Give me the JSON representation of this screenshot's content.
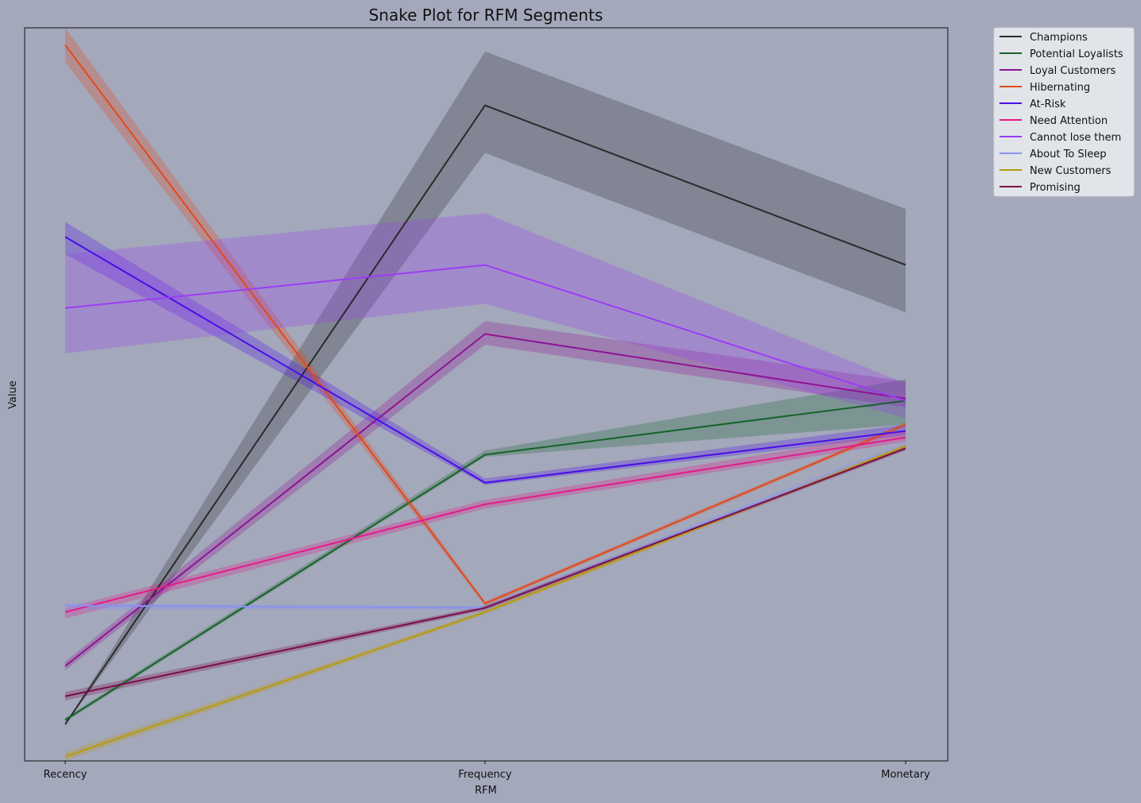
{
  "chart_data": {
    "type": "line",
    "title": "Snake Plot for RFM Segments",
    "xlabel": "RFM",
    "ylabel": "Value",
    "categories": [
      "Recency",
      "Frequency",
      "Monetary"
    ],
    "ylim": [
      -1.1,
      2.3
    ],
    "y_ticks_shown": false,
    "grid": false,
    "legend_position": "outside-top-right",
    "series": [
      {
        "name": "Champions",
        "color": "#2b2b2b",
        "values": [
          -0.93,
          1.94,
          1.2
        ],
        "ci": [
          [
            -0.93,
            -0.93
          ],
          [
            1.72,
            2.19
          ],
          [
            0.98,
            1.46
          ]
        ]
      },
      {
        "name": "Potential Loyalists",
        "color": "#17632a",
        "values": [
          -0.91,
          0.32,
          0.57
        ],
        "ci": [
          [
            -0.92,
            -0.9
          ],
          [
            0.31,
            0.34
          ],
          [
            0.46,
            0.67
          ]
        ]
      },
      {
        "name": "Loyal Customers",
        "color": "#8e1393",
        "values": [
          -0.66,
          0.88,
          0.58
        ],
        "ci": [
          [
            -0.68,
            -0.64
          ],
          [
            0.83,
            0.94
          ],
          [
            0.54,
            0.66
          ]
        ]
      },
      {
        "name": "Hibernating",
        "color": "#e2491c",
        "values": [
          2.22,
          -0.37,
          0.46
        ],
        "ci": [
          [
            2.14,
            2.3
          ],
          [
            -0.38,
            -0.36
          ],
          [
            0.45,
            0.47
          ]
        ]
      },
      {
        "name": "At-Risk",
        "color": "#4a0de8",
        "values": [
          1.33,
          0.19,
          0.43
        ],
        "ci": [
          [
            1.25,
            1.4
          ],
          [
            0.18,
            0.21
          ],
          [
            0.41,
            0.46
          ]
        ]
      },
      {
        "name": "Need Attention",
        "color": "#e31a8a",
        "values": [
          -0.41,
          0.09,
          0.4
        ],
        "ci": [
          [
            -0.44,
            -0.39
          ],
          [
            0.07,
            0.11
          ],
          [
            0.38,
            0.43
          ]
        ]
      },
      {
        "name": "Cannot lose them",
        "color": "#9b3df2",
        "values": [
          1.0,
          1.2,
          0.57
        ],
        "ci": [
          [
            0.79,
            1.25
          ],
          [
            1.02,
            1.44
          ],
          [
            0.49,
            0.65
          ]
        ]
      },
      {
        "name": "About To Sleep",
        "color": "#8a92ee",
        "values": [
          -0.38,
          -0.39,
          0.36
        ],
        "ci": [
          [
            -0.4,
            -0.37
          ],
          [
            -0.4,
            -0.38
          ],
          [
            0.35,
            0.38
          ]
        ]
      },
      {
        "name": "New Customers",
        "color": "#b89a0c",
        "values": [
          -1.08,
          -0.41,
          0.36
        ],
        "ci": [
          [
            -1.1,
            -1.06
          ],
          [
            -0.42,
            -0.4
          ],
          [
            0.35,
            0.37
          ]
        ]
      },
      {
        "name": "Promising",
        "color": "#7a0c48",
        "values": [
          -0.8,
          -0.39,
          0.35
        ],
        "ci": [
          [
            -0.82,
            -0.78
          ],
          [
            -0.4,
            -0.38
          ],
          [
            0.34,
            0.36
          ]
        ]
      }
    ]
  }
}
